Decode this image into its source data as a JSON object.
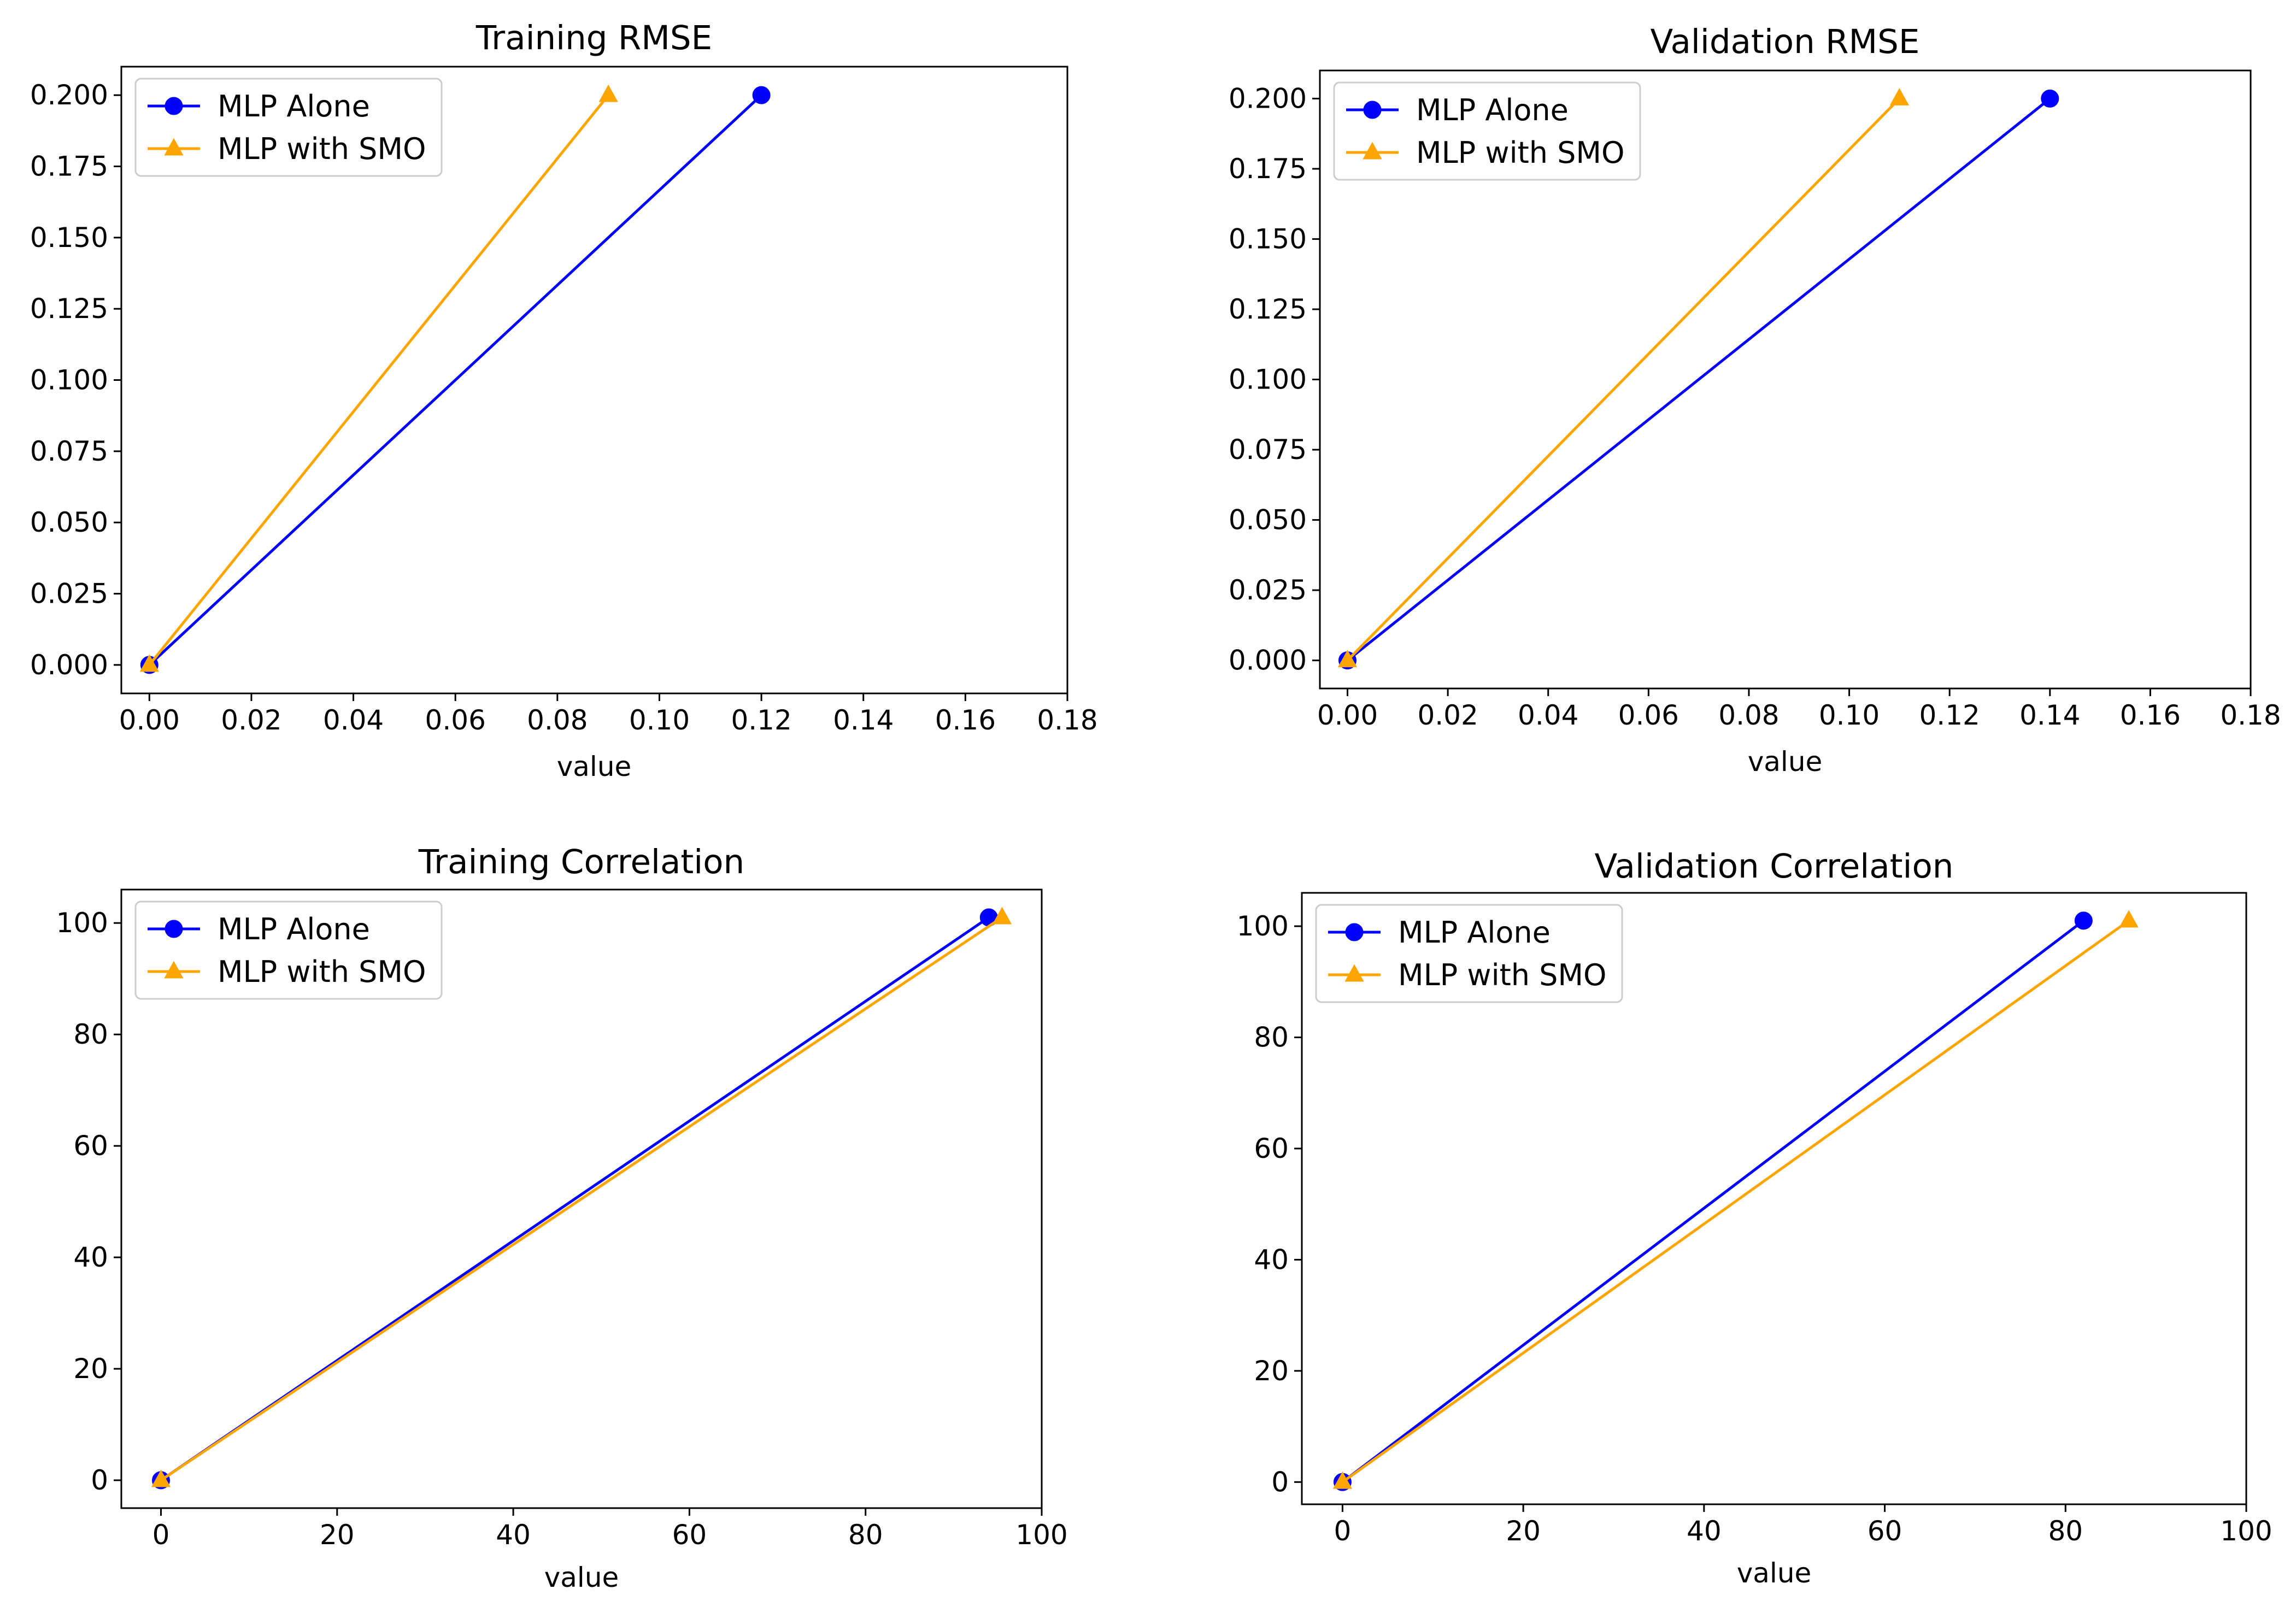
{
  "figure": {
    "background": "#ffffff"
  },
  "chart_data": [
    {
      "type": "line",
      "title": "Training RMSE",
      "xlabel": "value",
      "ylabel": "",
      "xlim": [
        -0.0055,
        0.18
      ],
      "ylim": [
        -0.01,
        0.21
      ],
      "xticks": [
        0,
        0.02,
        0.04,
        0.06,
        0.08,
        0.1,
        0.12,
        0.14,
        0.16,
        0.18
      ],
      "xtick_labels": [
        "0.00",
        "0.02",
        "0.04",
        "0.06",
        "0.08",
        "0.10",
        "0.12",
        "0.14",
        "0.16",
        "0.18"
      ],
      "yticks": [
        0,
        0.025,
        0.05,
        0.075,
        0.1,
        0.125,
        0.15,
        0.175,
        0.2
      ],
      "ytick_labels": [
        "0.000",
        "0.025",
        "0.050",
        "0.075",
        "0.100",
        "0.125",
        "0.150",
        "0.175",
        "0.200"
      ],
      "legend": "top-left",
      "series": [
        {
          "name": "MLP Alone",
          "color": "#0000ff",
          "marker": "circle",
          "x": [
            0,
            0.12
          ],
          "y": [
            0,
            0.2
          ]
        },
        {
          "name": "MLP with SMO",
          "color": "#ffa500",
          "marker": "triangle",
          "x": [
            0,
            0.09
          ],
          "y": [
            0,
            0.2
          ]
        }
      ]
    },
    {
      "type": "line",
      "title": "Validation RMSE",
      "xlabel": "value",
      "ylabel": "",
      "xlim": [
        -0.0055,
        0.18
      ],
      "ylim": [
        -0.01,
        0.21
      ],
      "xticks": [
        0,
        0.02,
        0.04,
        0.06,
        0.08,
        0.1,
        0.12,
        0.14,
        0.16,
        0.18
      ],
      "xtick_labels": [
        "0.00",
        "0.02",
        "0.04",
        "0.06",
        "0.08",
        "0.10",
        "0.12",
        "0.14",
        "0.16",
        "0.18"
      ],
      "yticks": [
        0,
        0.025,
        0.05,
        0.075,
        0.1,
        0.125,
        0.15,
        0.175,
        0.2
      ],
      "ytick_labels": [
        "0.000",
        "0.025",
        "0.050",
        "0.075",
        "0.100",
        "0.125",
        "0.150",
        "0.175",
        "0.200"
      ],
      "legend": "top-left",
      "series": [
        {
          "name": "MLP Alone",
          "color": "#0000ff",
          "marker": "circle",
          "x": [
            0,
            0.14
          ],
          "y": [
            0,
            0.2
          ]
        },
        {
          "name": "MLP with SMO",
          "color": "#ffa500",
          "marker": "triangle",
          "x": [
            0,
            0.11
          ],
          "y": [
            0,
            0.2
          ]
        }
      ]
    },
    {
      "type": "line",
      "title": "Training Correlation",
      "xlabel": "value",
      "ylabel": "",
      "xlim": [
        -4.5,
        100
      ],
      "ylim": [
        -5,
        106
      ],
      "xticks": [
        0,
        20,
        40,
        60,
        80,
        100
      ],
      "xtick_labels": [
        "0",
        "20",
        "40",
        "60",
        "80",
        "100"
      ],
      "yticks": [
        0,
        20,
        40,
        60,
        80,
        100
      ],
      "ytick_labels": [
        "0",
        "20",
        "40",
        "60",
        "80",
        "100"
      ],
      "legend": "top-left",
      "series": [
        {
          "name": "MLP Alone",
          "color": "#0000ff",
          "marker": "circle",
          "x": [
            0,
            94
          ],
          "y": [
            0,
            101
          ]
        },
        {
          "name": "MLP with SMO",
          "color": "#ffa500",
          "marker": "triangle",
          "x": [
            0,
            95.5
          ],
          "y": [
            0,
            101
          ]
        }
      ]
    },
    {
      "type": "line",
      "title": "Validation Correlation",
      "xlabel": "value",
      "ylabel": "",
      "xlim": [
        -4.5,
        100
      ],
      "ylim": [
        -4,
        106
      ],
      "xticks": [
        0,
        20,
        40,
        60,
        80,
        100
      ],
      "xtick_labels": [
        "0",
        "20",
        "40",
        "60",
        "80",
        "100"
      ],
      "yticks": [
        0,
        20,
        40,
        60,
        80,
        100
      ],
      "ytick_labels": [
        "0",
        "20",
        "40",
        "60",
        "80",
        "100"
      ],
      "legend": "top-left",
      "series": [
        {
          "name": "MLP Alone",
          "color": "#0000ff",
          "marker": "circle",
          "x": [
            0,
            82
          ],
          "y": [
            0,
            101
          ]
        },
        {
          "name": "MLP with SMO",
          "color": "#ffa500",
          "marker": "triangle",
          "x": [
            0,
            87
          ],
          "y": [
            0,
            101
          ]
        }
      ]
    }
  ]
}
